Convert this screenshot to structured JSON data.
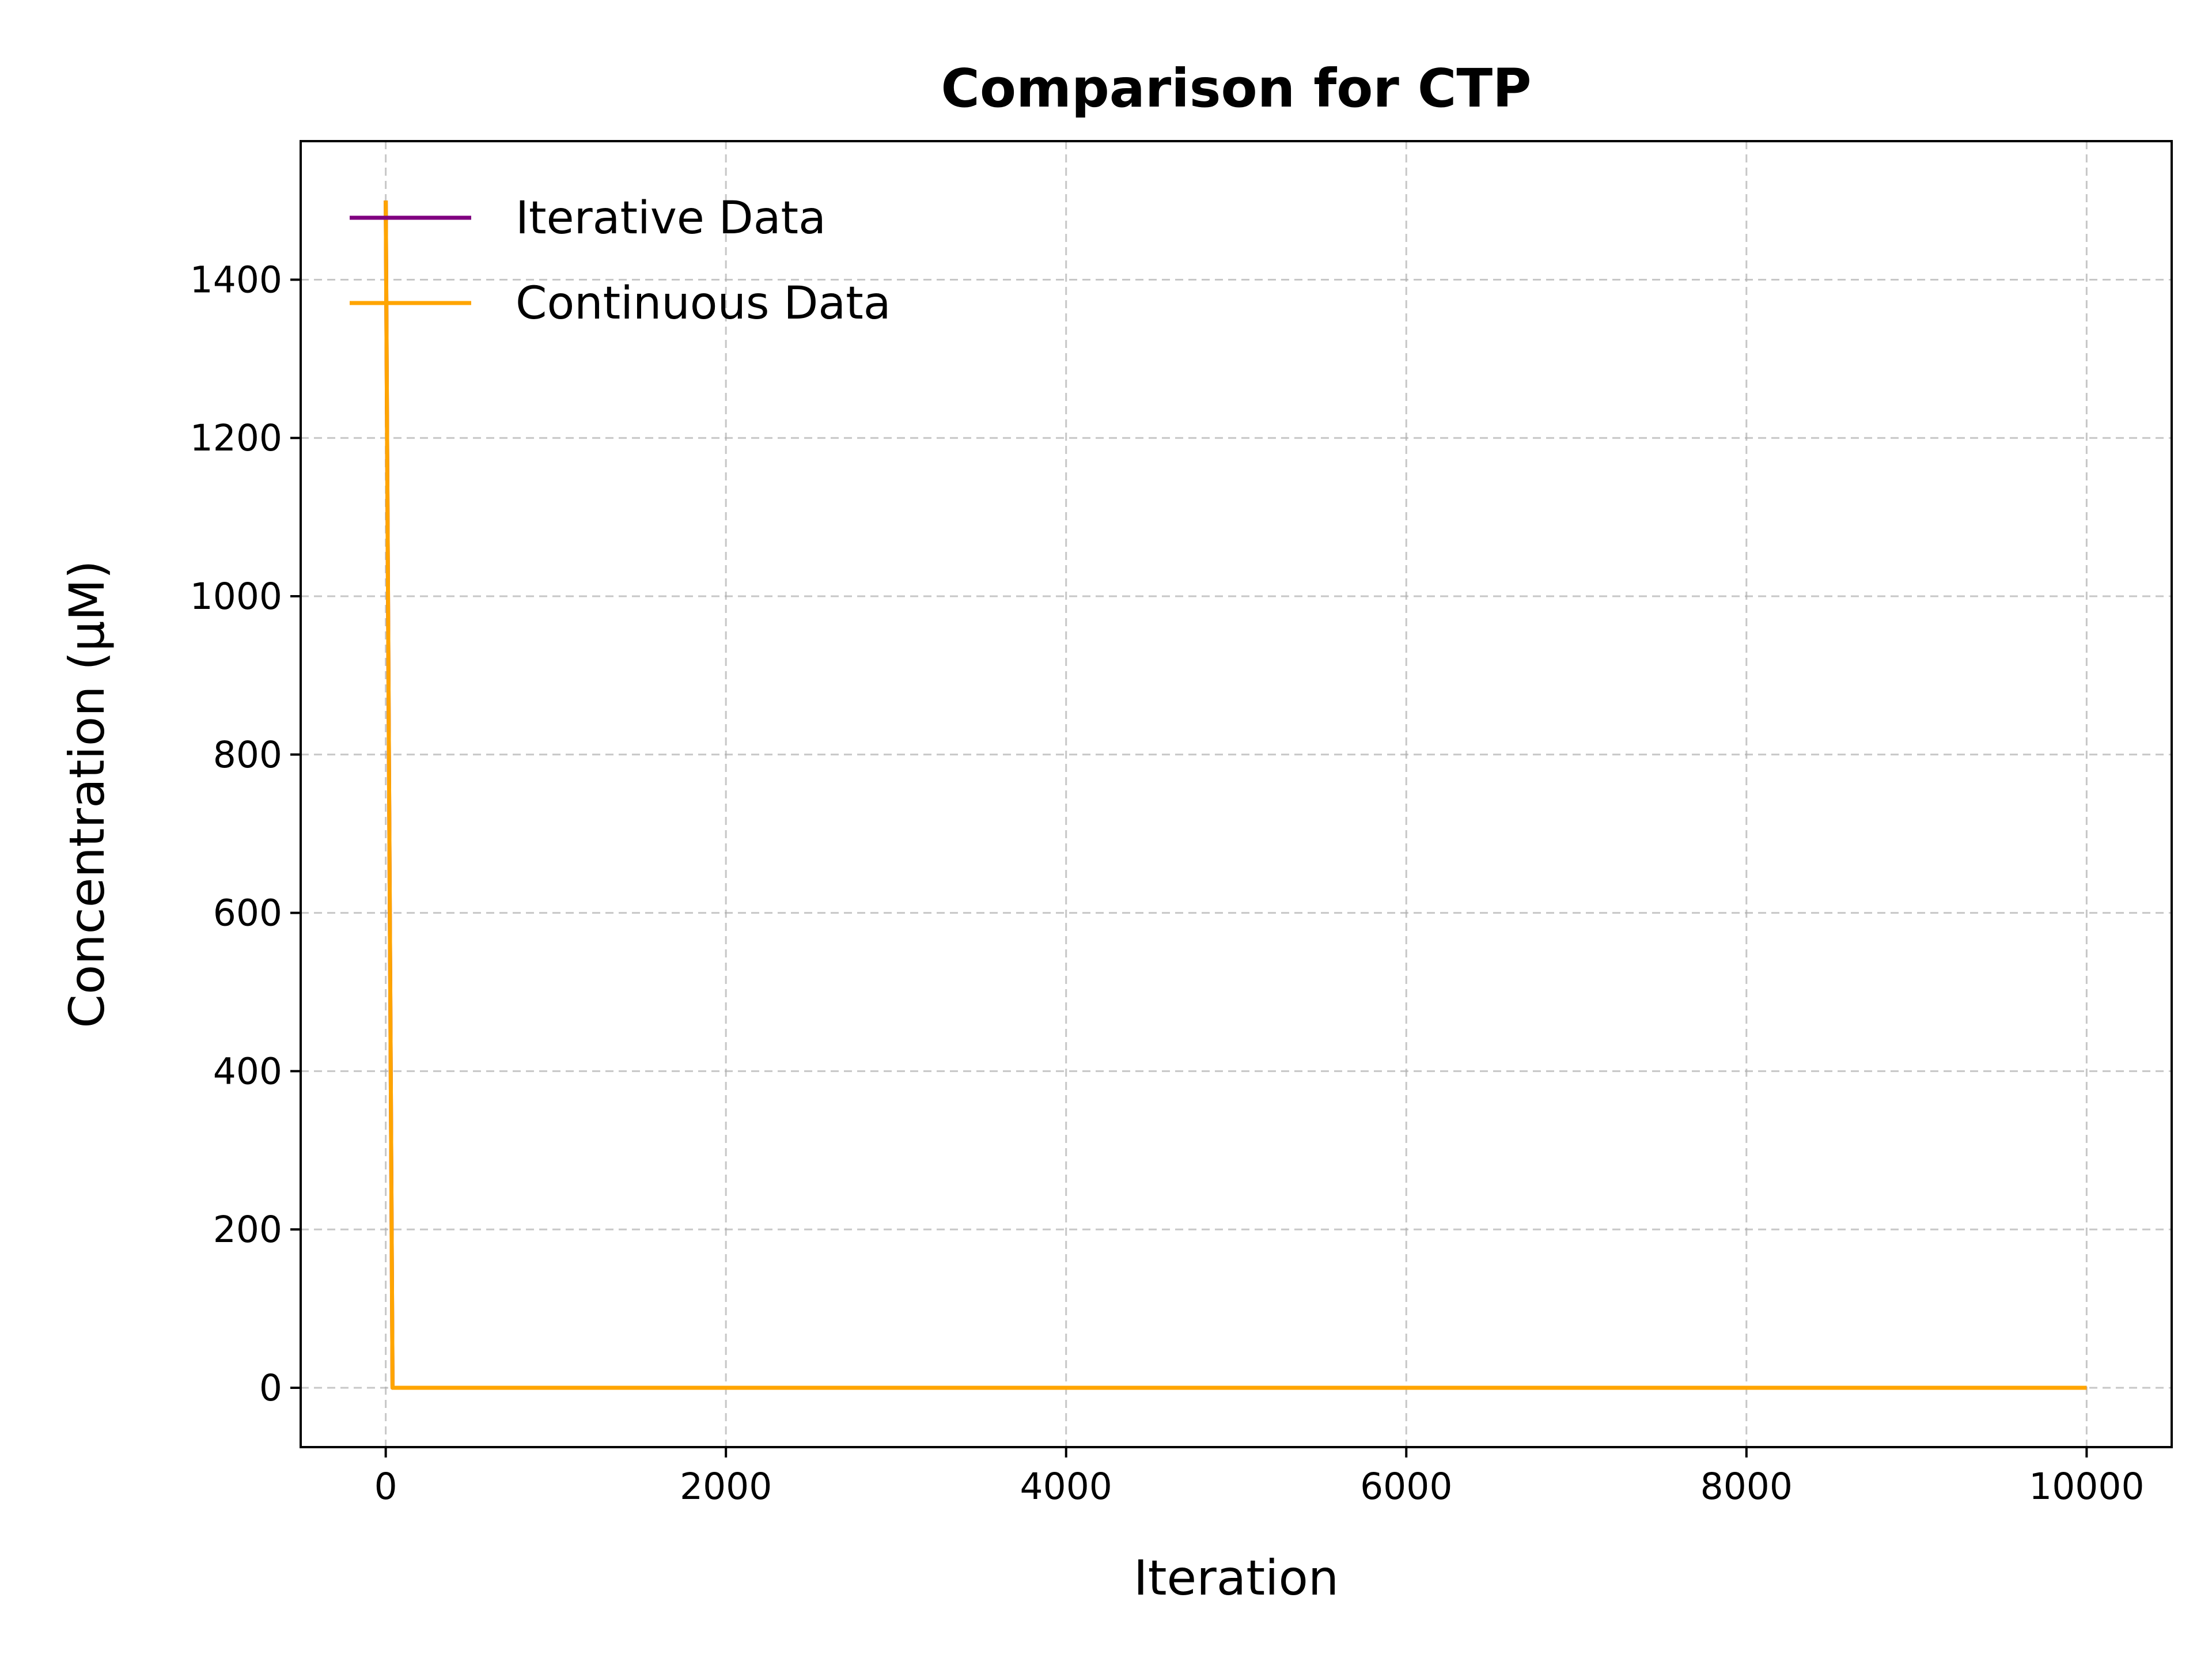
{
  "chart_data": {
    "type": "line",
    "title": "Comparison for CTP",
    "xlabel": "Iteration",
    "ylabel": "Concentration (μM)",
    "xlim": [
      -500,
      10500
    ],
    "ylim": [
      -75,
      1575
    ],
    "xticks": [
      0,
      2000,
      4000,
      6000,
      8000,
      10000
    ],
    "yticks": [
      0,
      200,
      400,
      600,
      800,
      1000,
      1200,
      1400
    ],
    "grid": true,
    "legend_position": "upper-left",
    "series": [
      {
        "name": "Iterative Data",
        "color": "#800080",
        "x": [
          0,
          40,
          10000
        ],
        "y": [
          1500,
          0,
          0
        ]
      },
      {
        "name": "Continuous Data",
        "color": "#FFA500",
        "x": [
          0,
          40,
          10000
        ],
        "y": [
          1500,
          0,
          0
        ]
      }
    ]
  }
}
